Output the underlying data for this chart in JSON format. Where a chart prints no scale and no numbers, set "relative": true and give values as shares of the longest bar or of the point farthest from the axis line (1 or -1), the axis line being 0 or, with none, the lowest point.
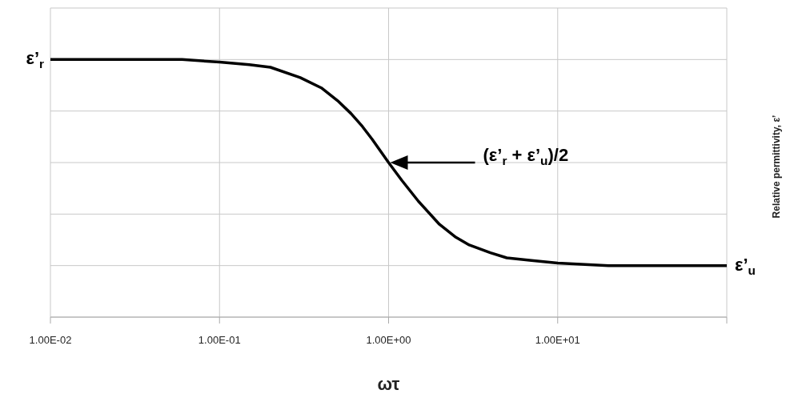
{
  "chart_data": {
    "type": "line",
    "relative": true,
    "xlabel": "ωτ",
    "log": "x",
    "grid": true,
    "xlim": [
      0.01,
      100
    ],
    "xticks": [
      {
        "value": 0.01,
        "label": "1.00E-02"
      },
      {
        "value": 0.1,
        "label": "1.00E-01"
      },
      {
        "value": 1,
        "label": "1.00E+00"
      },
      {
        "value": 10,
        "label": "1.00E+01"
      },
      {
        "value": 100,
        "label": null
      }
    ],
    "x": [
      0.01,
      0.03,
      0.06,
      0.1,
      0.15,
      0.2,
      0.3,
      0.4,
      0.5,
      0.6,
      0.7,
      0.8,
      1,
      1.2,
      1.5,
      2,
      2.5,
      3,
      4,
      5,
      7,
      10,
      20,
      50,
      100
    ],
    "series": [
      {
        "color": "#000000",
        "values": [
          1.0,
          1.0,
          1.0,
          0.99,
          0.98,
          0.97,
          0.93,
          0.89,
          0.84,
          0.79,
          0.74,
          0.69,
          0.6,
          0.53,
          0.45,
          0.36,
          0.31,
          0.28,
          0.25,
          0.23,
          0.22,
          0.21,
          0.2,
          0.2,
          0.2
        ]
      }
    ],
    "annotations": [
      {
        "text": "ε’$_{r}$",
        "x": 0.01,
        "y": 1
      },
      {
        "text": "ε’$_{u}$",
        "x": 100,
        "y": 0.2
      },
      "(ε’$_{r}$ + ε’$_{u}$)/2",
      "Relative permittivity, ε’"
    ]
  }
}
